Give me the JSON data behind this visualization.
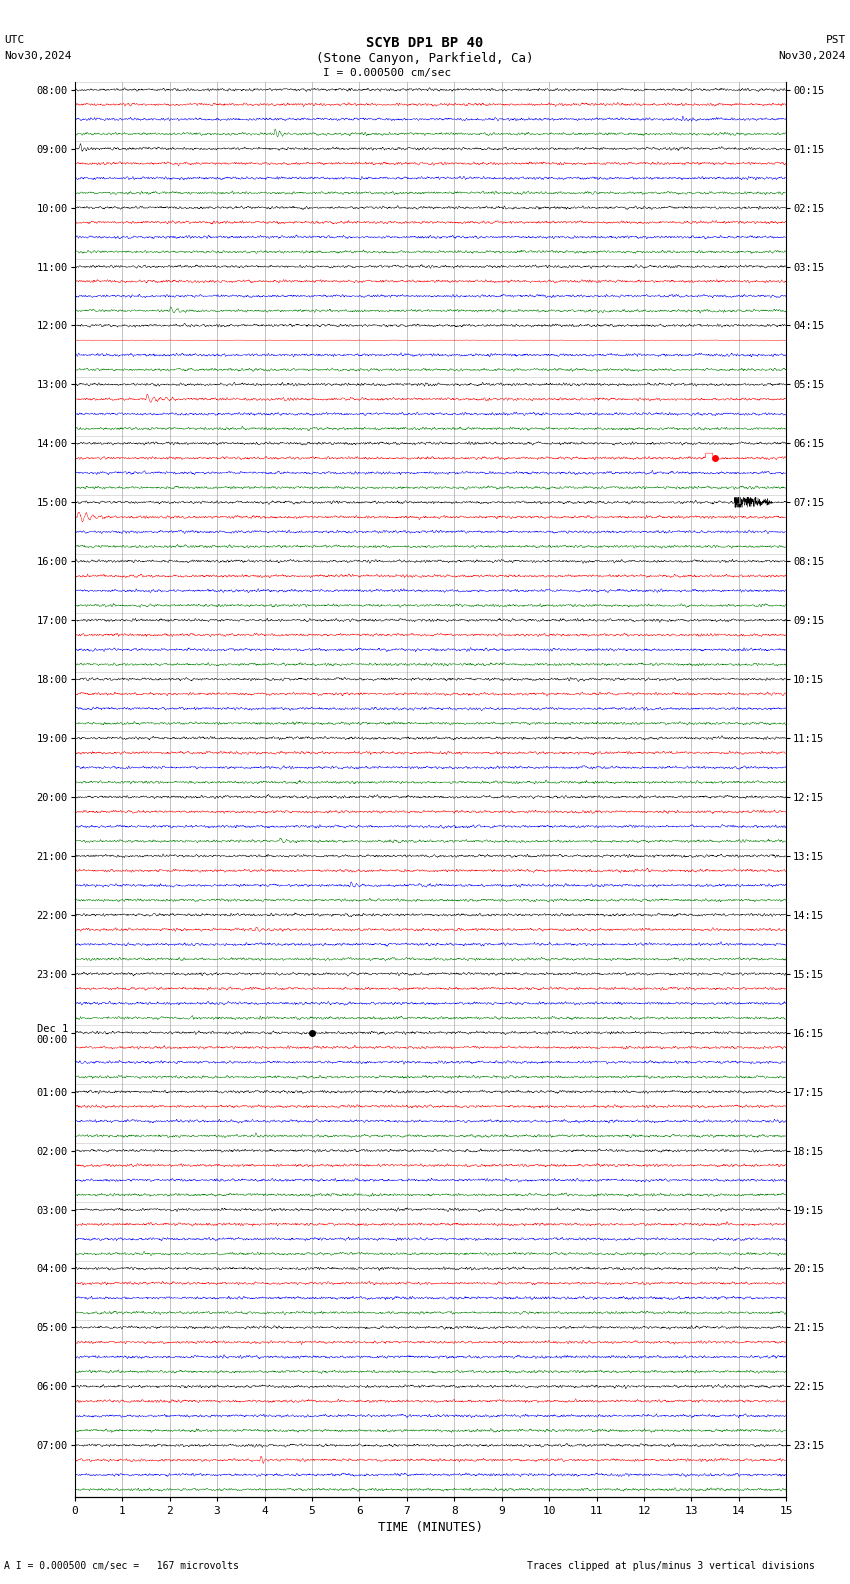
{
  "title_line1": "SCYB DP1 BP 40",
  "title_line2": "(Stone Canyon, Parkfield, Ca)",
  "scale_text": "I = 0.000500 cm/sec",
  "utc_label": "UTC",
  "utc_date": "Nov30,2024",
  "pst_label": "PST",
  "pst_date": "Nov30,2024",
  "bottom_left": "A I = 0.000500 cm/sec =   167 microvolts",
  "bottom_right": "Traces clipped at plus/minus 3 vertical divisions",
  "xlabel": "TIME (MINUTES)",
  "left_times": [
    "08:00",
    "09:00",
    "10:00",
    "11:00",
    "12:00",
    "13:00",
    "14:00",
    "15:00",
    "16:00",
    "17:00",
    "18:00",
    "19:00",
    "20:00",
    "21:00",
    "22:00",
    "23:00",
    "Dec 1\n00:00",
    "01:00",
    "02:00",
    "03:00",
    "04:00",
    "05:00",
    "06:00",
    "07:00"
  ],
  "right_times": [
    "00:15",
    "01:15",
    "02:15",
    "03:15",
    "04:15",
    "05:15",
    "06:15",
    "07:15",
    "08:15",
    "09:15",
    "10:15",
    "11:15",
    "12:15",
    "13:15",
    "14:15",
    "15:15",
    "16:15",
    "17:15",
    "18:15",
    "19:15",
    "20:15",
    "21:15",
    "22:15",
    "23:15"
  ],
  "n_rows": 24,
  "n_minutes": 15,
  "samples_per_minute": 200,
  "colors": [
    "black",
    "red",
    "blue",
    "green"
  ],
  "trace_amplitude": 0.028,
  "background_color": "white"
}
